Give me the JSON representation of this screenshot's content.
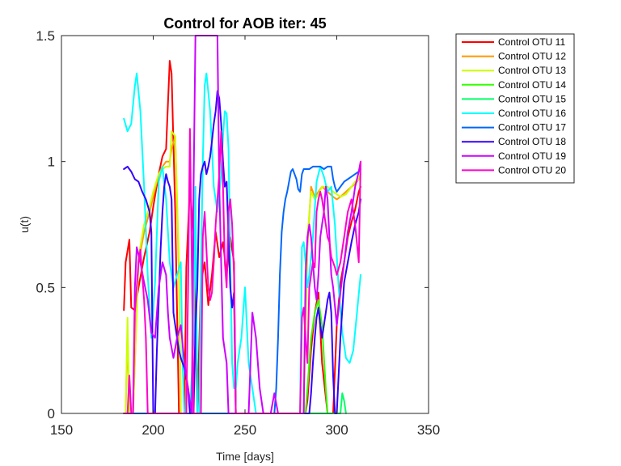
{
  "chart_data": {
    "type": "line",
    "title": "Control for AOB iter: 45",
    "xlabel": "Time [days]",
    "ylabel": "u(t)",
    "xlim": [
      150,
      350
    ],
    "ylim": [
      0,
      1.5
    ],
    "xticks": [
      150,
      200,
      250,
      300,
      350
    ],
    "xtick_labels": [
      "150",
      "200",
      "250",
      "300",
      "350"
    ],
    "yticks": [
      0,
      0.5,
      1,
      1.5
    ],
    "ytick_labels": [
      "0",
      "0.5",
      "1",
      "1.5"
    ],
    "legend_position": "outside-top-right",
    "grid": false,
    "series": [
      {
        "name": "Control OTU 11",
        "color": "#FF0000",
        "x": [
          184,
          185,
          187,
          188,
          190,
          192,
          195,
          198,
          200,
          203,
          205,
          207,
          209,
          210,
          212,
          214,
          216,
          217,
          218,
          220,
          222,
          224,
          226,
          228,
          230,
          232,
          234,
          236,
          238,
          240,
          242,
          244,
          245,
          246,
          250,
          260,
          270,
          280,
          282,
          283,
          284,
          286,
          288,
          290,
          292,
          295,
          298,
          300,
          302,
          304,
          306,
          308,
          310,
          312,
          313
        ],
        "y": [
          0.41,
          0.6,
          0.69,
          0.42,
          0.41,
          0.5,
          0.62,
          0.72,
          0.82,
          0.95,
          1.02,
          1.05,
          1.4,
          1.35,
          0.8,
          0.0,
          0.0,
          0.0,
          0.58,
          0.9,
          0.7,
          0.0,
          0.52,
          0.6,
          0.43,
          0.55,
          0.72,
          0.62,
          0.68,
          0.55,
          0.7,
          0.6,
          0.0,
          0.0,
          0.0,
          0.0,
          0.0,
          0.0,
          0.0,
          0.0,
          0.05,
          0.25,
          0.4,
          0.48,
          0.2,
          0.0,
          0.0,
          0.35,
          0.52,
          0.6,
          0.7,
          0.76,
          0.81,
          0.88,
          0.9
        ]
      },
      {
        "name": "Control OTU 12",
        "color": "#FF9900",
        "x": [
          184,
          185,
          186,
          187,
          189,
          192,
          195,
          198,
          200,
          203,
          205,
          207,
          209,
          210,
          212,
          214,
          215,
          216,
          280,
          281,
          282,
          284,
          286,
          288,
          290,
          292,
          295,
          298,
          300,
          302,
          305,
          308,
          310,
          312,
          313
        ],
        "y": [
          0.0,
          0.0,
          0.32,
          0.0,
          0.0,
          0.6,
          0.72,
          0.8,
          0.86,
          0.95,
          0.98,
          1.0,
          1.0,
          1.05,
          1.1,
          0.55,
          0.0,
          0.0,
          0.0,
          0.0,
          0.0,
          0.66,
          0.9,
          0.86,
          0.88,
          0.9,
          0.88,
          0.86,
          0.85,
          0.86,
          0.88,
          0.9,
          0.91,
          0.93,
          0.95
        ]
      },
      {
        "name": "Control OTU 13",
        "color": "#CCFF00",
        "x": [
          184,
          185,
          186,
          187,
          189,
          192,
          195,
          198,
          200,
          203,
          205,
          207,
          209,
          210,
          212,
          214,
          215,
          216,
          280,
          281,
          282,
          284,
          286,
          288,
          290,
          292,
          295,
          298,
          300,
          302,
          305,
          308,
          310,
          312,
          313
        ],
        "y": [
          0.0,
          0.0,
          0.38,
          0.0,
          0.0,
          0.62,
          0.75,
          0.82,
          0.88,
          0.95,
          0.97,
          0.98,
          0.98,
          1.12,
          1.1,
          0.6,
          0.0,
          0.0,
          0.0,
          0.0,
          0.0,
          0.7,
          0.88,
          0.85,
          0.87,
          0.9,
          0.9,
          0.88,
          0.87,
          0.86,
          0.87,
          0.9,
          0.92,
          0.93,
          0.95
        ]
      },
      {
        "name": "Control OTU 14",
        "color": "#33FF00",
        "x": [
          184,
          280,
          281,
          282,
          283,
          284,
          286,
          288,
          290,
          292,
          294,
          295
        ],
        "y": [
          0.0,
          0.0,
          0.0,
          0.0,
          0.0,
          0.1,
          0.3,
          0.4,
          0.45,
          0.35,
          0.1,
          0.0
        ]
      },
      {
        "name": "Control OTU 15",
        "color": "#00FF66",
        "x": [
          184,
          300,
          302,
          303,
          304,
          305
        ],
        "y": [
          0.0,
          0.0,
          0.0,
          0.08,
          0.05,
          0.0
        ]
      },
      {
        "name": "Control OTU 16",
        "color": "#00FFFF",
        "x": [
          184,
          186,
          188,
          190,
          191,
          193,
          195,
          197,
          199,
          201,
          203,
          205,
          207,
          209,
          211,
          213,
          215,
          216,
          217,
          218,
          219,
          220,
          222,
          223,
          224,
          225,
          226,
          227,
          228,
          229,
          231,
          233,
          235,
          237,
          238,
          239,
          240,
          241,
          242,
          243,
          244,
          245,
          246,
          248,
          250,
          252,
          254,
          256,
          258,
          260,
          262,
          264,
          266,
          268,
          270,
          272,
          274,
          276,
          277,
          278,
          279,
          280,
          281,
          282,
          283,
          284,
          285,
          287,
          289,
          291,
          293,
          295,
          297,
          299,
          301,
          303,
          305,
          307,
          309,
          311,
          313
        ],
        "y": [
          1.17,
          1.12,
          1.15,
          1.3,
          1.35,
          1.2,
          0.9,
          0.55,
          0.3,
          0.52,
          0.92,
          0.98,
          0.85,
          0.6,
          0.5,
          0.55,
          0.6,
          0.2,
          0.0,
          0.0,
          0.0,
          0.0,
          0.3,
          0.9,
          0.0,
          0.0,
          0.55,
          1.0,
          1.3,
          1.35,
          1.2,
          0.9,
          0.8,
          0.95,
          1.1,
          1.2,
          1.19,
          1.05,
          0.6,
          0.2,
          0.1,
          0.1,
          0.2,
          0.3,
          0.5,
          0.2,
          0.1,
          0.0,
          0.0,
          0.0,
          0.0,
          0.0,
          0.0,
          0.0,
          0.0,
          0.0,
          0.0,
          0.0,
          0.0,
          0.0,
          0.0,
          0.0,
          0.66,
          0.68,
          0.6,
          0.5,
          0.55,
          0.7,
          0.92,
          0.98,
          0.94,
          0.88,
          0.9,
          0.75,
          0.5,
          0.32,
          0.22,
          0.2,
          0.25,
          0.4,
          0.55
        ]
      },
      {
        "name": "Control OTU 17",
        "color": "#0066FF",
        "x": [
          184,
          266,
          267,
          268,
          269,
          270,
          271,
          272,
          273,
          274,
          275,
          276,
          277,
          278,
          279,
          280,
          281,
          282,
          283,
          284,
          285,
          287,
          289,
          291,
          293,
          295,
          297,
          298,
          299,
          300,
          302,
          304,
          306,
          308,
          310,
          312,
          313
        ],
        "y": [
          0.0,
          0.0,
          0.1,
          0.3,
          0.55,
          0.72,
          0.8,
          0.85,
          0.88,
          0.92,
          0.96,
          0.97,
          0.95,
          0.93,
          0.89,
          0.88,
          0.95,
          0.97,
          0.97,
          0.97,
          0.97,
          0.98,
          0.98,
          0.98,
          0.97,
          0.98,
          0.98,
          0.93,
          0.9,
          0.88,
          0.9,
          0.92,
          0.93,
          0.94,
          0.95,
          0.96,
          0.97
        ]
      },
      {
        "name": "Control OTU 18",
        "color": "#3300FF",
        "x": [
          184,
          186,
          188,
          190,
          192,
          194,
          196,
          198,
          199,
          200,
          201,
          202,
          203,
          204,
          205,
          206,
          207,
          208,
          209,
          210,
          211,
          212,
          213,
          214,
          215,
          216,
          217,
          218,
          219,
          220,
          221,
          222,
          223,
          224,
          225,
          226,
          227,
          228,
          229,
          230,
          231,
          232,
          233,
          234,
          235,
          236,
          237,
          238,
          239,
          240,
          241,
          242,
          243,
          244,
          245,
          246,
          248,
          250,
          280,
          285,
          286,
          287,
          288,
          289,
          290,
          291,
          292,
          293,
          294,
          295,
          296,
          297,
          298,
          299,
          300,
          302,
          304,
          306,
          308,
          310,
          312,
          313
        ],
        "y": [
          0.97,
          0.98,
          0.96,
          0.93,
          0.92,
          0.88,
          0.85,
          0.8,
          0.72,
          0.0,
          0.0,
          0.25,
          0.45,
          0.65,
          0.8,
          0.9,
          0.95,
          0.92,
          0.9,
          0.85,
          0.4,
          0.35,
          0.3,
          0.25,
          0.22,
          0.2,
          0.18,
          0.14,
          0.1,
          0.0,
          0.0,
          0.0,
          0.35,
          0.5,
          0.85,
          0.95,
          0.98,
          1.0,
          0.95,
          0.98,
          1.02,
          1.08,
          1.15,
          1.2,
          1.28,
          1.25,
          1.15,
          1.0,
          0.9,
          0.92,
          0.7,
          0.5,
          0.42,
          0.48,
          0.0,
          0.0,
          0.0,
          0.0,
          0.0,
          0.0,
          0.08,
          0.2,
          0.3,
          0.38,
          0.42,
          0.35,
          0.3,
          0.35,
          0.4,
          0.45,
          0.48,
          0.4,
          0.15,
          0.0,
          0.0,
          0.3,
          0.52,
          0.6,
          0.68,
          0.75,
          0.8,
          0.85
        ]
      },
      {
        "name": "Control OTU 19",
        "color": "#CC00FF",
        "x": [
          184,
          189,
          190,
          191,
          193,
          195,
          197,
          199,
          201,
          203,
          205,
          207,
          208,
          209,
          211,
          213,
          215,
          217,
          219,
          221,
          222,
          223,
          224,
          225,
          226,
          227,
          228,
          229,
          230,
          231,
          232,
          233,
          234,
          235,
          236,
          237,
          238,
          239,
          240,
          241,
          242,
          243,
          244,
          245,
          246,
          247,
          248,
          249,
          250,
          252,
          254,
          256,
          258,
          260,
          262,
          264,
          266,
          268,
          270,
          280,
          281,
          282,
          283,
          284,
          285,
          286,
          287,
          288,
          289,
          290,
          291,
          292,
          293,
          294,
          295,
          296,
          297,
          298,
          300,
          302,
          304,
          306,
          308,
          310,
          312,
          313
        ],
        "y": [
          0.0,
          0.0,
          0.5,
          0.66,
          0.6,
          0.52,
          0.45,
          0.32,
          0.3,
          0.5,
          0.6,
          0.55,
          0.4,
          0.3,
          0.22,
          0.3,
          0.35,
          0.2,
          0.1,
          0.0,
          0.9,
          1.5,
          1.5,
          1.5,
          1.5,
          1.5,
          1.5,
          1.5,
          1.5,
          1.5,
          1.5,
          1.5,
          1.5,
          1.5,
          0.9,
          0.6,
          0.3,
          0.25,
          0.2,
          0.0,
          0.0,
          0.0,
          0.0,
          0.0,
          0.0,
          0.0,
          0.0,
          0.0,
          0.0,
          0.0,
          0.4,
          0.3,
          0.1,
          0.0,
          0.0,
          0.0,
          0.08,
          0.0,
          0.0,
          0.0,
          0.0,
          0.0,
          0.55,
          0.7,
          0.75,
          0.7,
          0.6,
          0.5,
          0.45,
          0.55,
          0.7,
          0.75,
          0.8,
          0.9,
          0.85,
          0.7,
          0.55,
          0.5,
          0.35,
          0.48,
          0.6,
          0.72,
          0.8,
          0.9,
          0.96,
          1.0
        ]
      },
      {
        "name": "Control OTU 20",
        "color": "#FF00CC",
        "x": [
          184,
          186,
          187,
          188,
          189,
          190,
          191,
          192,
          193,
          194,
          195,
          196,
          197,
          198,
          199,
          200,
          201,
          202,
          203,
          204,
          205,
          206,
          207,
          208,
          209,
          210,
          211,
          212,
          213,
          214,
          215,
          216,
          217,
          218,
          219,
          220,
          221,
          222,
          223,
          224,
          225,
          226,
          227,
          228,
          229,
          230,
          231,
          232,
          233,
          234,
          235,
          236,
          237,
          238,
          239,
          240,
          241,
          242,
          243,
          244,
          245,
          246,
          250,
          280,
          281,
          282,
          283,
          284,
          285,
          286,
          287,
          288,
          289,
          290,
          291,
          292,
          293,
          294,
          295,
          296,
          297,
          298,
          299,
          300,
          302,
          304,
          306,
          308,
          310,
          312,
          313
        ],
        "y": [
          0.0,
          0.0,
          0.15,
          0.0,
          0.0,
          0.4,
          0.5,
          0.6,
          0.65,
          0.55,
          0.45,
          0.3,
          0.0,
          0.0,
          0.0,
          0.0,
          0.0,
          0.0,
          0.0,
          0.0,
          0.0,
          0.0,
          0.0,
          0.0,
          0.0,
          0.0,
          0.0,
          0.0,
          0.0,
          0.0,
          0.0,
          0.0,
          0.0,
          0.0,
          0.5,
          1.13,
          0.6,
          0.0,
          0.0,
          0.0,
          0.0,
          0.0,
          0.7,
          0.8,
          0.65,
          0.5,
          0.45,
          0.48,
          0.6,
          0.75,
          0.85,
          0.95,
          1.12,
          0.9,
          0.6,
          0.5,
          0.8,
          0.85,
          0.75,
          0.55,
          0.0,
          0.0,
          0.0,
          0.0,
          0.38,
          0.42,
          0.3,
          0.2,
          0.5,
          0.55,
          0.6,
          0.58,
          0.8,
          0.85,
          0.88,
          0.85,
          0.8,
          0.75,
          0.7,
          0.68,
          0.62,
          0.6,
          0.58,
          0.55,
          0.6,
          0.7,
          0.8,
          0.85,
          0.75,
          0.6,
          1.0
        ]
      }
    ]
  }
}
